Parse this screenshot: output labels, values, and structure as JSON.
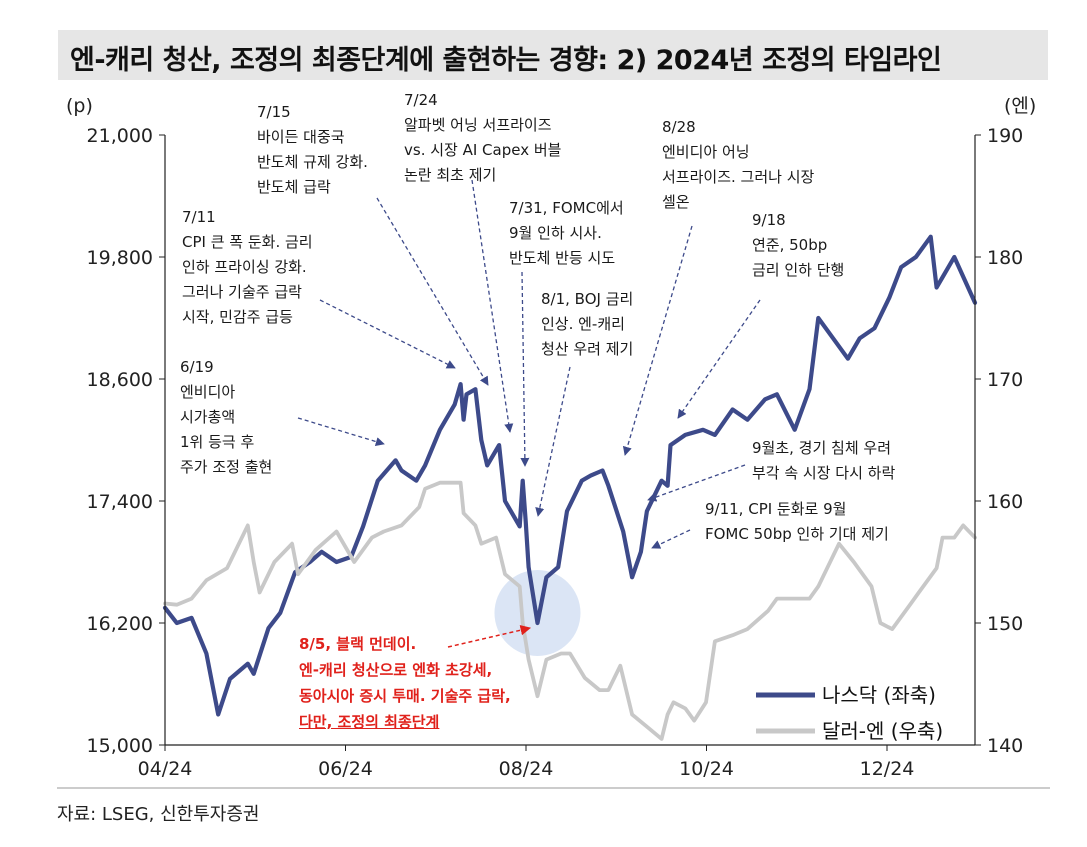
{
  "title": "엔-캐리 청산, 조정의 최종단계에 출현하는 경향: 2) 2024년 조정의 타임라인",
  "source": "자료: LSEG, 신한투자증권",
  "colors": {
    "nasdaq": "#3d4a8a",
    "usdjpy": "#c8c8c8",
    "highlight": "#cfdcf2",
    "red": "#e0211b",
    "title_bg": "#e6e6e6"
  },
  "annotations": [
    {
      "id": "a0619",
      "lines": [
        "6/19",
        "엔비디아",
        "시가총액",
        "1위 등극 후",
        "주가 조정 출현"
      ]
    },
    {
      "id": "a0711",
      "lines": [
        "7/11",
        "CPI 큰 폭 둔화. 금리",
        "인하 프라이싱 강화.",
        "그러나 기술주 급락",
        "시작, 민감주 급등"
      ]
    },
    {
      "id": "a0715",
      "lines": [
        "7/15",
        "바이든 대중국",
        "반도체 규제 강화.",
        "반도체 급락"
      ]
    },
    {
      "id": "a0724",
      "lines": [
        "7/24",
        "알파벳 어닝 서프라이즈",
        "vs. 시장 AI Capex 버블",
        "논란 최초 제기"
      ]
    },
    {
      "id": "a0731",
      "lines": [
        "7/31, FOMC에서",
        "9월 인하 시사.",
        "반도체 반등 시도"
      ]
    },
    {
      "id": "a0801",
      "lines": [
        "8/1, BOJ 금리",
        "인상. 엔-캐리",
        "청산 우려 제기"
      ]
    },
    {
      "id": "a0828",
      "lines": [
        "8/28",
        "엔비디아 어닝",
        "서프라이즈. 그러나 시장",
        "셀온"
      ]
    },
    {
      "id": "a0918",
      "lines": [
        "9/18",
        "연준, 50bp",
        "금리 인하 단행"
      ]
    },
    {
      "id": "a09early",
      "lines": [
        "9월초, 경기 침체 우려",
        "부각 속 시장 다시 하락"
      ]
    },
    {
      "id": "a0911",
      "lines": [
        "9/11, CPI 둔화로 9월",
        "FOMC 50bp 인하 기대 제기"
      ]
    },
    {
      "id": "a0805",
      "lines": [
        "8/5, 블랙 먼데이.",
        "엔-캐리 청산으로 엔화 초강세,",
        "동아시아 증시 투매. 기술주 급락,"
      ],
      "underlined": "다만, 조정의 최종단계"
    }
  ],
  "chart_data": {
    "type": "line",
    "x_ticks": [
      "04/24",
      "06/24",
      "08/24",
      "10/24",
      "12/24"
    ],
    "y_left": {
      "unit": "(p)",
      "ticks": [
        "21,000",
        "19,800",
        "18,600",
        "17,400",
        "16,200",
        "15,000"
      ],
      "range": [
        15000,
        21000
      ]
    },
    "y_right": {
      "unit": "(엔)",
      "ticks": [
        "190",
        "180",
        "170",
        "160",
        "150",
        "140"
      ],
      "range": [
        140,
        190
      ]
    },
    "x_range": [
      "2024-04-01",
      "2024-12-31"
    ],
    "grid": false,
    "legend_position": "bottom-right",
    "series": [
      {
        "name": "나스닥 (좌축)",
        "axis": "left",
        "key": "nasdaq",
        "points": [
          [
            "2024-04-01",
            16350
          ],
          [
            "2024-04-05",
            16200
          ],
          [
            "2024-04-10",
            16250
          ],
          [
            "2024-04-15",
            15900
          ],
          [
            "2024-04-19",
            15300
          ],
          [
            "2024-04-23",
            15650
          ],
          [
            "2024-04-29",
            15800
          ],
          [
            "2024-05-01",
            15700
          ],
          [
            "2024-05-06",
            16150
          ],
          [
            "2024-05-10",
            16300
          ],
          [
            "2024-05-15",
            16700
          ],
          [
            "2024-05-20",
            16800
          ],
          [
            "2024-05-24",
            16900
          ],
          [
            "2024-05-29",
            16800
          ],
          [
            "2024-06-03",
            16850
          ],
          [
            "2024-06-07",
            17150
          ],
          [
            "2024-06-12",
            17600
          ],
          [
            "2024-06-18",
            17800
          ],
          [
            "2024-06-20",
            17700
          ],
          [
            "2024-06-25",
            17600
          ],
          [
            "2024-06-28",
            17750
          ],
          [
            "2024-07-03",
            18100
          ],
          [
            "2024-07-08",
            18350
          ],
          [
            "2024-07-10",
            18550
          ],
          [
            "2024-07-11",
            18200
          ],
          [
            "2024-07-12",
            18450
          ],
          [
            "2024-07-15",
            18500
          ],
          [
            "2024-07-17",
            18000
          ],
          [
            "2024-07-19",
            17750
          ],
          [
            "2024-07-23",
            17950
          ],
          [
            "2024-07-25",
            17400
          ],
          [
            "2024-07-30",
            17150
          ],
          [
            "2024-07-31",
            17600
          ],
          [
            "2024-08-01",
            17200
          ],
          [
            "2024-08-02",
            16750
          ],
          [
            "2024-08-05",
            16200
          ],
          [
            "2024-08-08",
            16650
          ],
          [
            "2024-08-12",
            16750
          ],
          [
            "2024-08-15",
            17300
          ],
          [
            "2024-08-20",
            17600
          ],
          [
            "2024-08-23",
            17650
          ],
          [
            "2024-08-27",
            17700
          ],
          [
            "2024-08-29",
            17550
          ],
          [
            "2024-09-03",
            17100
          ],
          [
            "2024-09-06",
            16650
          ],
          [
            "2024-09-09",
            16900
          ],
          [
            "2024-09-11",
            17300
          ],
          [
            "2024-09-16",
            17600
          ],
          [
            "2024-09-18",
            17550
          ],
          [
            "2024-09-19",
            17950
          ],
          [
            "2024-09-24",
            18050
          ],
          [
            "2024-09-30",
            18100
          ],
          [
            "2024-10-04",
            18050
          ],
          [
            "2024-10-10",
            18300
          ],
          [
            "2024-10-15",
            18200
          ],
          [
            "2024-10-21",
            18400
          ],
          [
            "2024-10-25",
            18450
          ],
          [
            "2024-10-31",
            18100
          ],
          [
            "2024-11-05",
            18500
          ],
          [
            "2024-11-08",
            19200
          ],
          [
            "2024-11-13",
            19000
          ],
          [
            "2024-11-18",
            18800
          ],
          [
            "2024-11-22",
            19000
          ],
          [
            "2024-11-27",
            19100
          ],
          [
            "2024-12-02",
            19400
          ],
          [
            "2024-12-06",
            19700
          ],
          [
            "2024-12-11",
            19800
          ],
          [
            "2024-12-16",
            20000
          ],
          [
            "2024-12-18",
            19500
          ],
          [
            "2024-12-20",
            19600
          ],
          [
            "2024-12-24",
            19800
          ],
          [
            "2024-12-31",
            19350
          ]
        ]
      },
      {
        "name": "달러-엔 (우축)",
        "axis": "right",
        "key": "usdjpy",
        "points": [
          [
            "2024-04-01",
            151.6
          ],
          [
            "2024-04-05",
            151.5
          ],
          [
            "2024-04-10",
            152.0
          ],
          [
            "2024-04-15",
            153.5
          ],
          [
            "2024-04-22",
            154.5
          ],
          [
            "2024-04-26",
            156.5
          ],
          [
            "2024-04-29",
            158.0
          ],
          [
            "2024-05-01",
            155.0
          ],
          [
            "2024-05-03",
            152.5
          ],
          [
            "2024-05-08",
            155.0
          ],
          [
            "2024-05-14",
            156.5
          ],
          [
            "2024-05-16",
            154.0
          ],
          [
            "2024-05-22",
            156.0
          ],
          [
            "2024-05-29",
            157.5
          ],
          [
            "2024-06-04",
            155.0
          ],
          [
            "2024-06-10",
            157.0
          ],
          [
            "2024-06-14",
            157.5
          ],
          [
            "2024-06-20",
            158.0
          ],
          [
            "2024-06-26",
            159.5
          ],
          [
            "2024-06-28",
            161.0
          ],
          [
            "2024-07-03",
            161.5
          ],
          [
            "2024-07-10",
            161.5
          ],
          [
            "2024-07-11",
            159.0
          ],
          [
            "2024-07-15",
            158.0
          ],
          [
            "2024-07-17",
            156.5
          ],
          [
            "2024-07-22",
            157.0
          ],
          [
            "2024-07-25",
            154.0
          ],
          [
            "2024-07-30",
            153.0
          ],
          [
            "2024-07-31",
            150.0
          ],
          [
            "2024-08-02",
            147.0
          ],
          [
            "2024-08-05",
            144.0
          ],
          [
            "2024-08-08",
            147.0
          ],
          [
            "2024-08-13",
            147.5
          ],
          [
            "2024-08-16",
            147.5
          ],
          [
            "2024-08-21",
            145.5
          ],
          [
            "2024-08-26",
            144.5
          ],
          [
            "2024-08-29",
            144.5
          ],
          [
            "2024-09-02",
            146.5
          ],
          [
            "2024-09-06",
            142.5
          ],
          [
            "2024-09-11",
            141.5
          ],
          [
            "2024-09-16",
            140.5
          ],
          [
            "2024-09-18",
            142.5
          ],
          [
            "2024-09-20",
            143.5
          ],
          [
            "2024-09-24",
            143.0
          ],
          [
            "2024-09-27",
            142.0
          ],
          [
            "2024-10-01",
            143.5
          ],
          [
            "2024-10-04",
            148.5
          ],
          [
            "2024-10-10",
            149.0
          ],
          [
            "2024-10-15",
            149.5
          ],
          [
            "2024-10-22",
            151.0
          ],
          [
            "2024-10-25",
            152.0
          ],
          [
            "2024-10-31",
            152.0
          ],
          [
            "2024-11-05",
            152.0
          ],
          [
            "2024-11-08",
            153.0
          ],
          [
            "2024-11-15",
            156.5
          ],
          [
            "2024-11-20",
            155.0
          ],
          [
            "2024-11-26",
            153.0
          ],
          [
            "2024-11-29",
            150.0
          ],
          [
            "2024-12-03",
            149.5
          ],
          [
            "2024-12-09",
            151.5
          ],
          [
            "2024-12-12",
            152.5
          ],
          [
            "2024-12-18",
            154.5
          ],
          [
            "2024-12-20",
            157.0
          ],
          [
            "2024-12-24",
            157.0
          ],
          [
            "2024-12-27",
            158.0
          ],
          [
            "2024-12-31",
            157.0
          ]
        ]
      }
    ]
  }
}
